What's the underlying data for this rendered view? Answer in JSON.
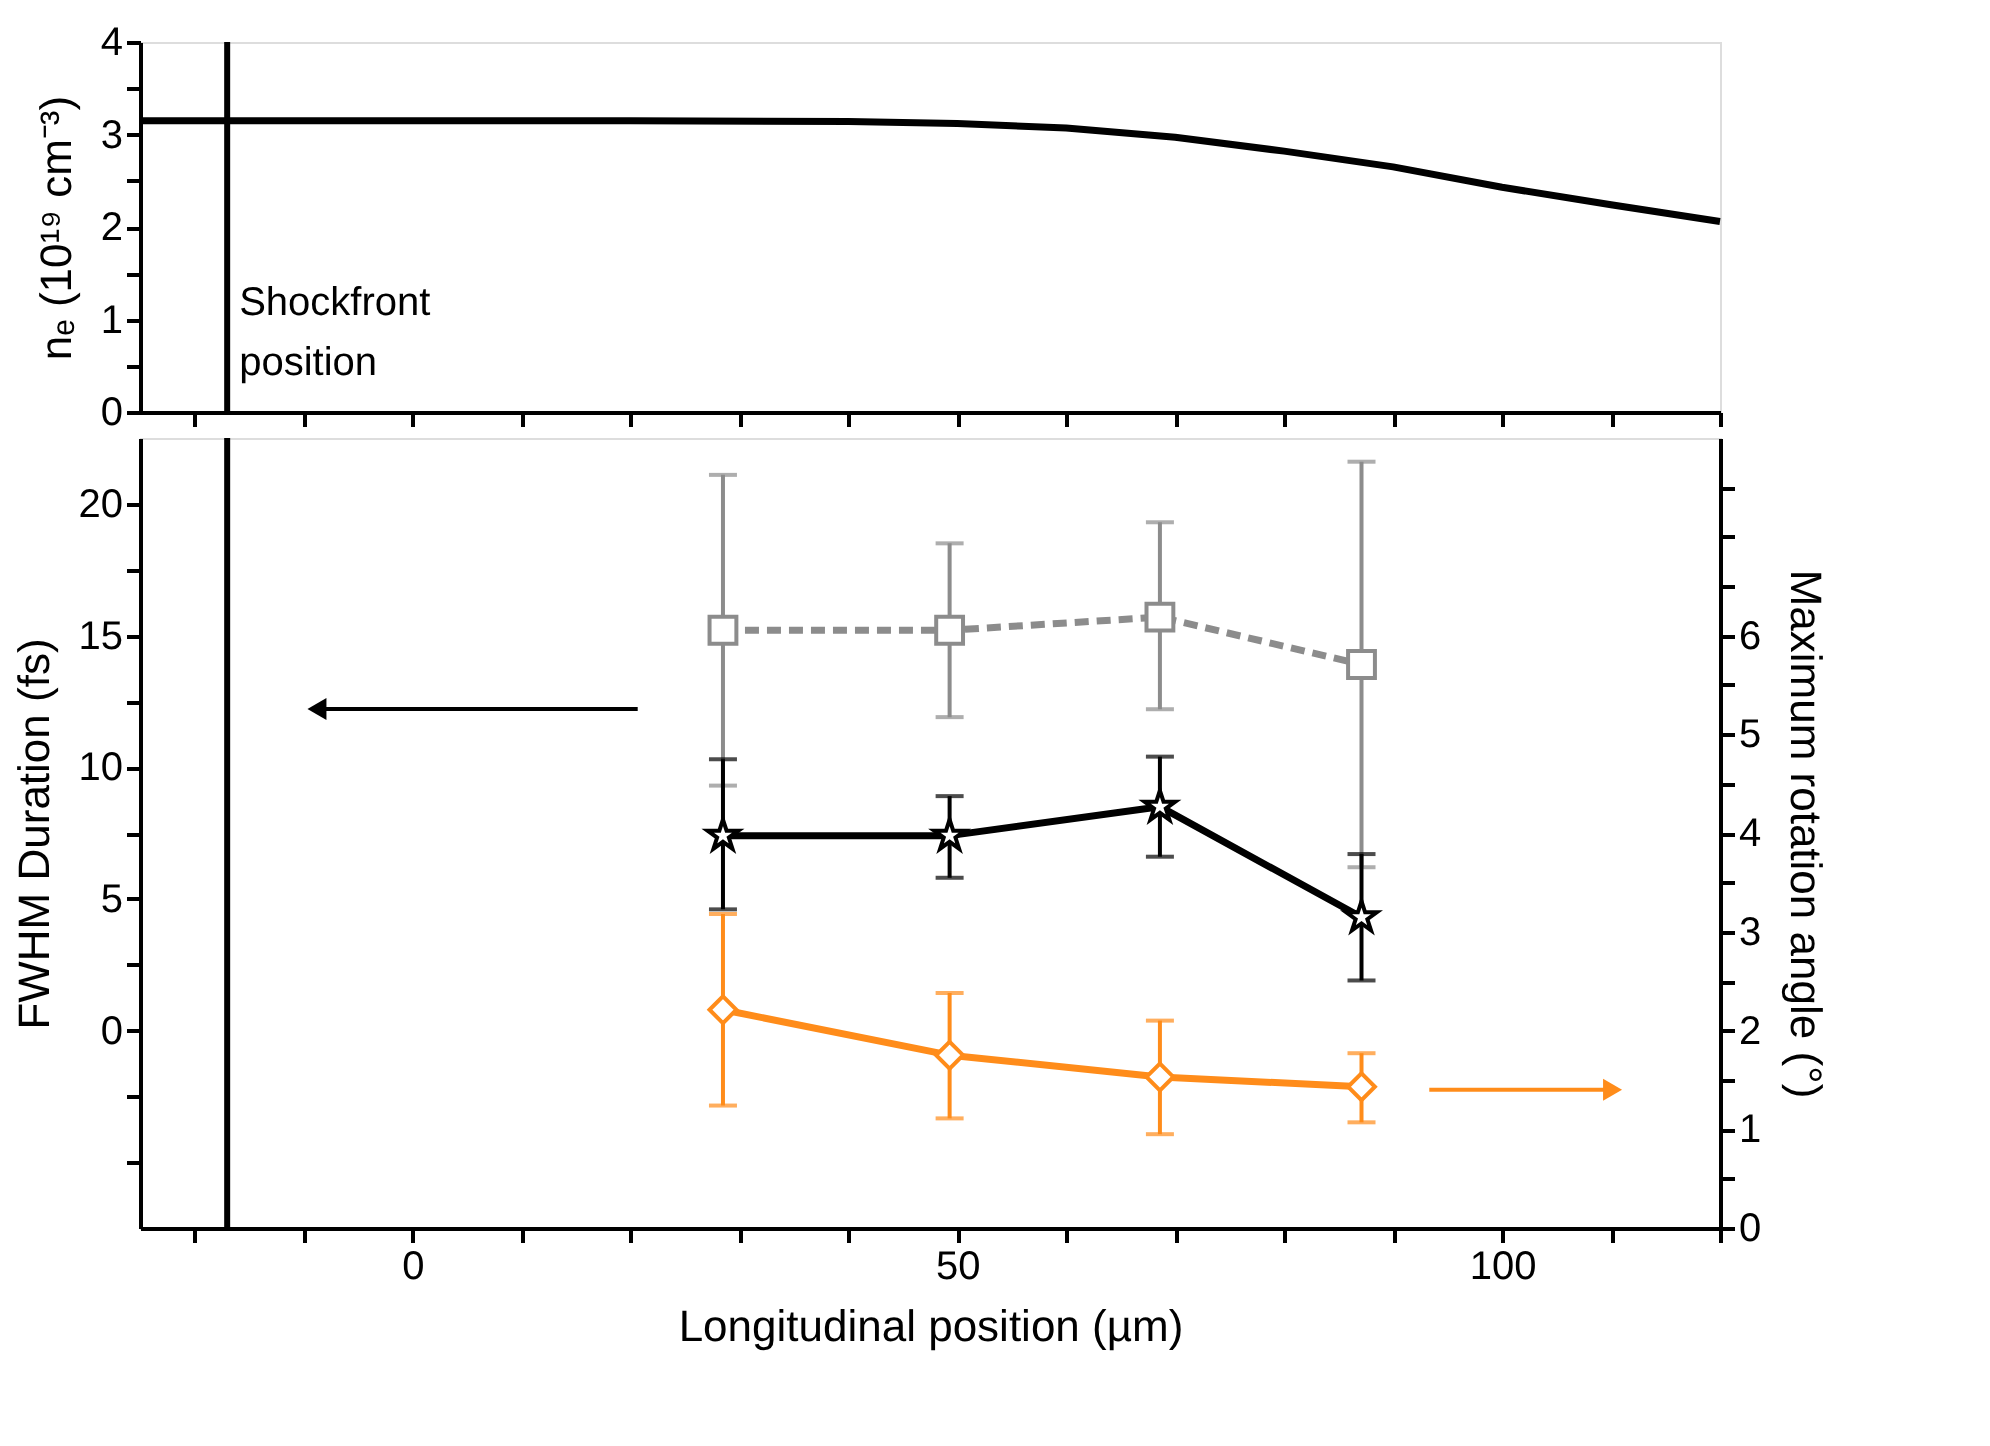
{
  "chart_data": [
    {
      "type": "line",
      "ylabel": "nₑ (10¹⁹ cm⁻³)",
      "tick_labels": "y",
      "x": [
        -25,
        0,
        20,
        40,
        50,
        60,
        70,
        80,
        90,
        100,
        110,
        120
      ],
      "series": [
        {
          "color": "#000000",
          "values": [
            3.15,
            3.15,
            3.15,
            3.14,
            3.12,
            3.07,
            2.97,
            2.82,
            2.65,
            2.43,
            2.24,
            2.06
          ],
          "line_style": "solid",
          "marker": "none"
        }
      ],
      "xlim": [
        -25,
        120
      ],
      "xticks": [
        {
          "value": -20,
          "label": null
        },
        {
          "value": -10,
          "label": null
        },
        {
          "value": 0,
          "label": null
        },
        {
          "value": 10,
          "label": null
        },
        {
          "value": 20,
          "label": null
        },
        {
          "value": 30,
          "label": null
        },
        {
          "value": 40,
          "label": null
        },
        {
          "value": 50,
          "label": null
        },
        {
          "value": 60,
          "label": null
        },
        {
          "value": 70,
          "label": null
        },
        {
          "value": 80,
          "label": null
        },
        {
          "value": 90,
          "label": null
        },
        {
          "value": 100,
          "label": null
        },
        {
          "value": 110,
          "label": null
        },
        {
          "value": 120,
          "label": null
        }
      ],
      "ylim": [
        0,
        4
      ],
      "yticks": [
        0,
        {
          "value": 0.5,
          "label": null
        },
        1,
        {
          "value": 1.5,
          "label": null
        },
        2,
        {
          "value": 2.5,
          "label": null
        },
        3,
        {
          "value": 3.5,
          "label": null
        },
        4
      ],
      "ref_lines": [
        {
          "axis": "x",
          "value": -17,
          "label": "Shockfront position",
          "color": "#000000"
        }
      ]
    },
    {
      "type": "line",
      "xlabel": "Longitudinal position (µm)",
      "ylabel": "FWHM Duration (fs)",
      "y2label": "Maximum rotation angle (°)",
      "x": [
        28.5,
        49.3,
        68.6,
        87.1
      ],
      "series": [
        {
          "color": "#8c8c8c",
          "marker": "square",
          "line_style": "dashed",
          "values": [
            15.2,
            15.2,
            15.7,
            13.9
          ],
          "errors": [
            [
              9.3,
              21.1
            ],
            [
              11.9,
              18.5
            ],
            [
              12.2,
              19.3
            ],
            [
              6.2,
              21.6
            ]
          ]
        },
        {
          "color": "#000000",
          "marker": "star",
          "line_style": "solid",
          "values": [
            7.4,
            7.4,
            8.5,
            4.3
          ],
          "errors": [
            [
              4.6,
              10.3
            ],
            [
              5.8,
              8.9
            ],
            [
              6.6,
              10.4
            ],
            [
              1.9,
              6.7
            ]
          ]
        },
        {
          "color": "#ff8c1a",
          "marker": "diamond",
          "line_style": "solid",
          "axis": "y2",
          "values": [
            2.21,
            1.75,
            1.53,
            1.43
          ],
          "errors": [
            [
              1.24,
              3.18
            ],
            [
              1.11,
              2.38
            ],
            [
              0.95,
              2.1
            ],
            [
              1.07,
              1.77
            ]
          ]
        }
      ],
      "xlim": [
        -25,
        120
      ],
      "xticks": [
        {
          "value": -20,
          "label": null
        },
        {
          "value": -10,
          "label": null
        },
        0,
        {
          "value": 10,
          "label": null
        },
        {
          "value": 20,
          "label": null
        },
        {
          "value": 30,
          "label": null
        },
        {
          "value": 40,
          "label": null
        },
        50,
        {
          "value": 60,
          "label": null
        },
        {
          "value": 70,
          "label": null
        },
        {
          "value": 80,
          "label": null
        },
        {
          "value": 90,
          "label": null
        },
        100,
        {
          "value": 110,
          "label": null
        },
        {
          "value": 120,
          "label": null
        }
      ],
      "ylim": [
        -7.5,
        22.5
      ],
      "yticks": [
        {
          "value": -5,
          "label": null
        },
        {
          "value": -2.5,
          "label": null
        },
        0,
        {
          "value": 2.5,
          "label": null
        },
        5,
        {
          "value": 7.5,
          "label": null
        },
        10,
        {
          "value": 12.5,
          "label": null
        },
        15,
        {
          "value": 17.5,
          "label": null
        },
        20
      ],
      "y2lim": [
        0,
        8
      ],
      "y2ticks": [
        0,
        {
          "value": 0.5,
          "label": null
        },
        1,
        {
          "value": 1.5,
          "label": null
        },
        2,
        {
          "value": 2.5,
          "label": null
        },
        3,
        {
          "value": 3.5,
          "label": null
        },
        4,
        {
          "value": 4.5,
          "label": null
        },
        5,
        {
          "value": 5.5,
          "label": null
        },
        6,
        {
          "value": 6.5,
          "label": null
        },
        {
          "value": 7,
          "label": null
        },
        {
          "value": 7.5,
          "label": null
        }
      ],
      "ref_lines": [
        {
          "axis": "x",
          "value": -17,
          "color": "#000000"
        }
      ]
    }
  ]
}
